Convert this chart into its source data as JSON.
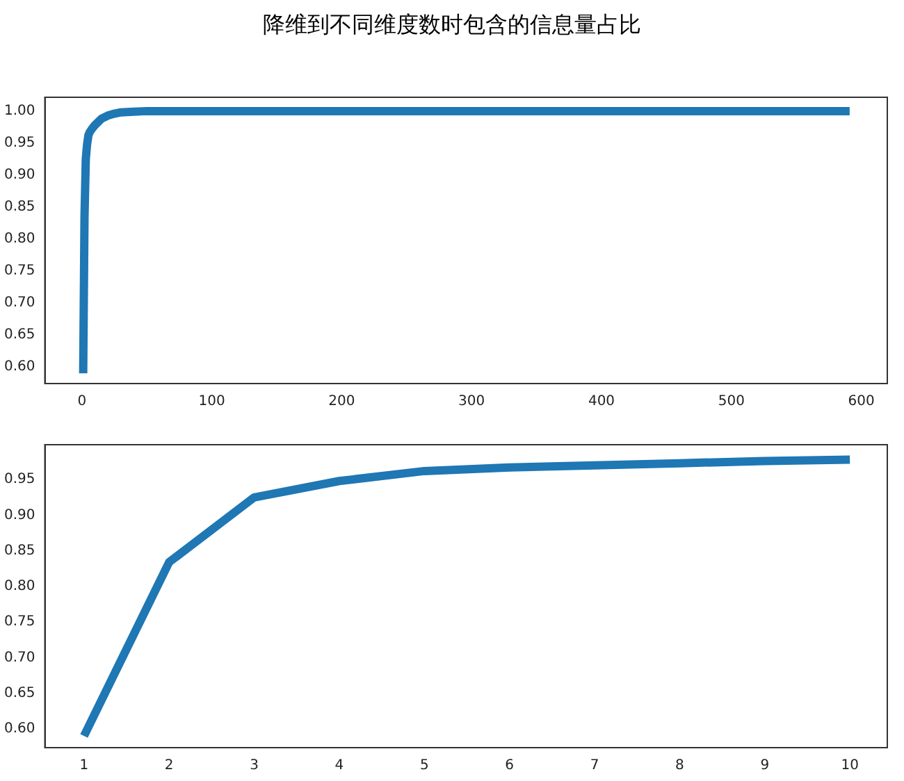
{
  "chart_data": [
    {
      "type": "line",
      "title": "降维到不同维度数时包含的信息量占比",
      "x": [
        1,
        2,
        3,
        4,
        5,
        6,
        8,
        10,
        15,
        20,
        25,
        30,
        40,
        50,
        100,
        200,
        300,
        400,
        500,
        591
      ],
      "values": [
        0.59,
        0.834,
        0.925,
        0.948,
        0.962,
        0.967,
        0.973,
        0.978,
        0.988,
        0.993,
        0.996,
        0.998,
        0.999,
        1.0,
        1.0,
        1.0,
        1.0,
        1.0,
        1.0,
        1.0
      ],
      "color": "#1f77b4",
      "xlim": [
        -28.5,
        620
      ],
      "xticks": [
        0,
        100,
        200,
        300,
        400,
        500,
        600
      ],
      "ylim": [
        0.574,
        1.0216
      ],
      "yticks": [
        {
          "value": 0.6,
          "label": "0.60"
        },
        {
          "value": 0.65,
          "label": "0.65"
        },
        {
          "value": 0.7,
          "label": "0.70"
        },
        {
          "value": 0.75,
          "label": "0.75"
        },
        {
          "value": 0.8,
          "label": "0.80"
        },
        {
          "value": 0.85,
          "label": "0.85"
        },
        {
          "value": 0.9,
          "label": "0.90"
        },
        {
          "value": 0.95,
          "label": "0.95"
        },
        {
          "value": 1.0,
          "label": "1.00"
        }
      ],
      "grid": false
    },
    {
      "type": "line",
      "x": [
        1,
        2,
        3,
        4,
        5,
        6,
        7,
        8,
        9,
        10
      ],
      "values": [
        0.59,
        0.834,
        0.925,
        0.948,
        0.962,
        0.967,
        0.97,
        0.973,
        0.976,
        0.978
      ],
      "color": "#1f77b4",
      "xlim": [
        0.54,
        10.44
      ],
      "xticks": [
        1,
        2,
        3,
        4,
        5,
        6,
        7,
        8,
        9,
        10
      ],
      "ylim": [
        0.5735,
        0.999
      ],
      "yticks": [
        {
          "value": 0.6,
          "label": "0.60"
        },
        {
          "value": 0.65,
          "label": "0.65"
        },
        {
          "value": 0.7,
          "label": "0.70"
        },
        {
          "value": 0.75,
          "label": "0.75"
        },
        {
          "value": 0.8,
          "label": "0.80"
        },
        {
          "value": 0.85,
          "label": "0.85"
        },
        {
          "value": 0.9,
          "label": "0.90"
        },
        {
          "value": 0.95,
          "label": "0.95"
        }
      ],
      "grid": false
    }
  ]
}
